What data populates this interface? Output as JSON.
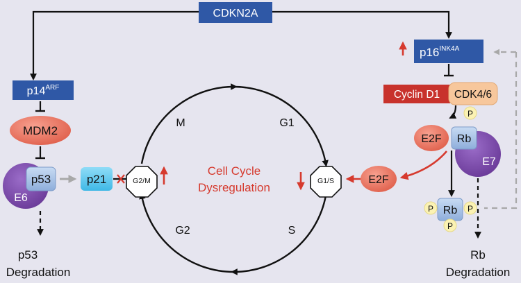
{
  "nodes": {
    "cdkn2a": "CDKN2A",
    "p14": {
      "base": "p14",
      "sup": "ARF"
    },
    "p16": {
      "base": "p16",
      "sup": "INK4A"
    },
    "mdm2": "MDM2",
    "p53": "p53",
    "e6": "E6",
    "p21": "p21",
    "g2m_checkpoint": "G2/M",
    "g1s_checkpoint": "G1/S",
    "cyclin_d1": "Cyclin D1",
    "cdk46": "CDK4/6",
    "e2f_bound": "E2F",
    "rb": "Rb",
    "e7": "E7",
    "e2f_free": "E2F",
    "rb_phospho": "Rb",
    "phospho_label": "P"
  },
  "cycle": {
    "phase_m": "M",
    "phase_g1": "G1",
    "phase_s": "S",
    "phase_g2": "G2",
    "center_line1": "Cell Cycle",
    "center_line2": "Dysregulation"
  },
  "outcomes": {
    "p53_deg_line1": "p53",
    "p53_deg_line2": "Degradation",
    "rb_deg_line1": "Rb",
    "rb_deg_line2": "Degradation"
  },
  "colors": {
    "background": "#e6e5ef",
    "blue_box": "#2f58a6",
    "salmon": "#e8735f",
    "light_blue": "#a9c3e6",
    "cyan": "#5ec9ef",
    "purple": "#7c4bab",
    "red": "#d63a2e",
    "cyclin_red": "#c8322c",
    "cdk_peach": "#f7c79c",
    "phospho_yellow": "#fbf2b3"
  }
}
